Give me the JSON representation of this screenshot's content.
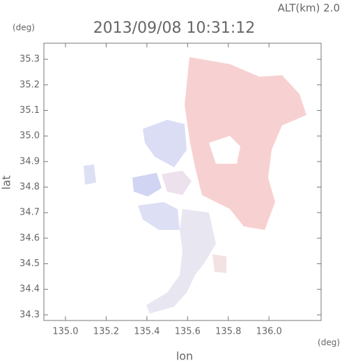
{
  "chart_data": {
    "type": "image",
    "title": "2013/09/08 10:31:12",
    "annotation": "ALT(km)  2.0",
    "y_unit": "(deg)",
    "x_unit": "(deg)",
    "xlabel": "lon",
    "ylabel": "lat",
    "xlim": [
      134.894,
      136.256
    ],
    "ylim": [
      34.278,
      35.363
    ],
    "xticks": [
      {
        "value": 135.0,
        "label": "135.0"
      },
      135.2,
      135.4,
      135.6,
      135.8,
      {
        "value": 136.0,
        "label": "136.0"
      }
    ],
    "yticks": [
      34.3,
      34.4,
      34.5,
      34.6,
      34.7,
      34.8,
      34.9,
      {
        "value": 35.0,
        "label": "35.0"
      },
      35.1,
      35.2,
      35.3
    ]
  }
}
